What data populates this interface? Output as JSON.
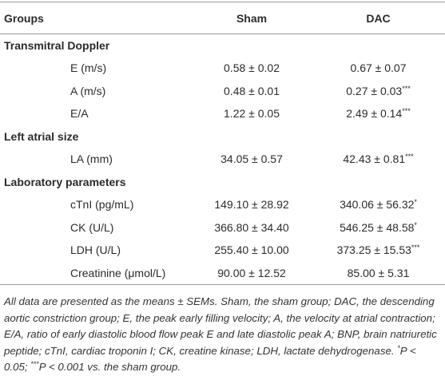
{
  "table": {
    "header": [
      "Groups",
      "Sham",
      "DAC"
    ],
    "sections": [
      {
        "title": "Transmitral Doppler",
        "rows": [
          {
            "label": "E (m/s)",
            "sham": "0.58 ± 0.02",
            "dac": "0.67 ± 0.07"
          },
          {
            "label": "A (m/s)",
            "sham": "0.48 ± 0.01",
            "dac": "0.27 ± 0.03",
            "dac_sup": "***"
          },
          {
            "label": "E/A",
            "sham": "1.22 ± 0.05",
            "dac": "2.49 ± 0.14",
            "dac_sup": "***"
          }
        ]
      },
      {
        "title": "Left atrial size",
        "rows": [
          {
            "label": "LA (mm)",
            "sham": "34.05 ± 0.57",
            "dac": "42.43 ± 0.81",
            "dac_sup": "***"
          }
        ]
      },
      {
        "title": "Laboratory parameters",
        "rows": [
          {
            "label": "cTnI (pg/mL)",
            "sham": "149.10 ± 28.92",
            "dac": "340.06 ± 56.32",
            "dac_sup": "*"
          },
          {
            "label": "CK (U/L)",
            "sham": "366.80 ± 34.40",
            "dac": "546.25 ± 48.58",
            "dac_sup": "*"
          },
          {
            "label": "LDH (U/L)",
            "sham": "255.40 ± 10.00",
            "dac": "373.25 ± 15.53",
            "dac_sup": "***"
          },
          {
            "label": "Creatinine (μmol/L)",
            "sham": "90.00 ± 12.52",
            "dac": "85.00 ± 5.31"
          }
        ]
      }
    ]
  },
  "footnote": {
    "text": "All data are presented as the means ± SEMs. Sham, the sham group; DAC, the descending aortic constriction group; E, the peak early filling velocity; A, the velocity at atrial contraction; E/A, ratio of early diastolic blood flow peak E and late diastolic peak A; BNP, brain natriuretic peptide; cTnI, cardiac troponin I; CK, creatine kinase; LDH, lactate dehydrogenase.",
    "notes": [
      {
        "sup": "*",
        "text": "P < 0.05;"
      },
      {
        "sup": "***",
        "text": "P < 0.001 vs. the sham group."
      }
    ]
  }
}
